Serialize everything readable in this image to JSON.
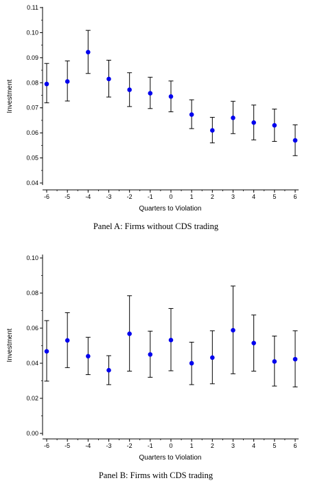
{
  "chart_data": [
    {
      "type": "scatter",
      "caption": "Panel A: Firms without CDS trading",
      "xlabel": "Quarters to Violation",
      "ylabel": "Investment",
      "x": [
        -6,
        -5,
        -4,
        -3,
        -2,
        -1,
        0,
        1,
        2,
        3,
        4,
        5,
        6
      ],
      "y": [
        0.0795,
        0.0805,
        0.0922,
        0.0815,
        0.0772,
        0.0758,
        0.0745,
        0.0673,
        0.061,
        0.066,
        0.0641,
        0.063,
        0.057
      ],
      "y_low": [
        0.072,
        0.0727,
        0.0837,
        0.0743,
        0.0705,
        0.0697,
        0.0684,
        0.0617,
        0.056,
        0.0597,
        0.0572,
        0.0566,
        0.0509
      ],
      "y_high": [
        0.0877,
        0.0887,
        0.1009,
        0.089,
        0.084,
        0.0822,
        0.0807,
        0.0732,
        0.0662,
        0.0726,
        0.0711,
        0.0695,
        0.0632
      ],
      "xticks": [
        "-6",
        "-5",
        "-4",
        "-3",
        "-2",
        "-1",
        "0",
        "1",
        "2",
        "3",
        "4",
        "5",
        "6"
      ],
      "yticks": [
        "0.04",
        "0.05",
        "0.06",
        "0.07",
        "0.08",
        "0.09",
        "0.10",
        "0.11"
      ],
      "ylim": [
        0.04,
        0.11
      ],
      "xlim": [
        -6.3,
        6.2
      ],
      "marker_color": "#0000ee",
      "errorbar_color": "#000000"
    },
    {
      "type": "scatter",
      "caption": "Panel B: Firms with CDS trading",
      "xlabel": "Quarters to Violation",
      "ylabel": "Investment",
      "x": [
        -6,
        -5,
        -4,
        -3,
        -2,
        -1,
        0,
        1,
        2,
        3,
        4,
        5,
        6
      ],
      "y": [
        0.0468,
        0.053,
        0.044,
        0.036,
        0.0568,
        0.045,
        0.0532,
        0.04,
        0.0432,
        0.0588,
        0.0515,
        0.041,
        0.0423
      ],
      "y_low": [
        0.0298,
        0.0375,
        0.0335,
        0.0278,
        0.0355,
        0.032,
        0.0357,
        0.0278,
        0.0283,
        0.034,
        0.0355,
        0.027,
        0.0265
      ],
      "y_high": [
        0.0643,
        0.0688,
        0.0548,
        0.0443,
        0.0785,
        0.0583,
        0.0712,
        0.052,
        0.0585,
        0.084,
        0.0675,
        0.0555,
        0.0585
      ],
      "xticks": [
        "-6",
        "-5",
        "-4",
        "-3",
        "-2",
        "-1",
        "0",
        "1",
        "2",
        "3",
        "4",
        "5",
        "6"
      ],
      "yticks": [
        "0.00",
        "0.02",
        "0.04",
        "0.06",
        "0.08",
        "0.10"
      ],
      "ylim": [
        0.0,
        0.1
      ],
      "xlim": [
        -6.3,
        6.2
      ],
      "marker_color": "#0000ee",
      "errorbar_color": "#000000"
    }
  ]
}
